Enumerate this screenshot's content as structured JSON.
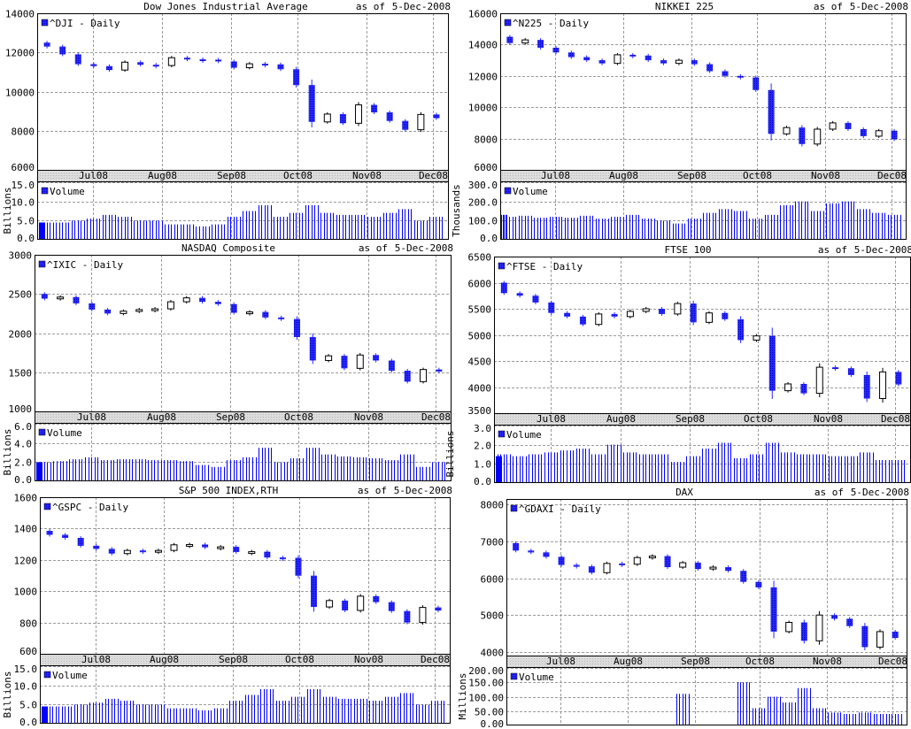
{
  "colors": {
    "down": "#2a2aff",
    "up": "#ffffff",
    "outline": "#000000",
    "volume": "#0000ff",
    "grid": "#9a9a9a",
    "date_band": "#d9d9d9"
  },
  "as_of_label": "as of",
  "as_of_date": "5-Dec-2008",
  "x_ticks": [
    "Jul08",
    "Aug08",
    "Sep08",
    "Oct08",
    "Nov08",
    "Dec08"
  ],
  "volume_legend": "Volume",
  "chart_data": [
    {
      "type": "candlestick",
      "title": "Dow Jones Industrial Average",
      "legend": "^DJI - Daily",
      "ylim": [
        6000,
        14000
      ],
      "yticks": [
        "6000",
        "8000",
        "10000",
        "12000",
        "14000"
      ],
      "volume_label": "Billions",
      "volume_ylim": [
        0,
        15
      ],
      "volume_ticks": [
        "0.0",
        "5.0",
        "10.0",
        "15.0"
      ],
      "x": [
        "2008-06-09",
        "2008-06-13",
        "2008-06-20",
        "2008-06-27",
        "2008-07-04",
        "2008-07-11",
        "2008-07-18",
        "2008-07-25",
        "2008-08-01",
        "2008-08-08",
        "2008-08-15",
        "2008-08-22",
        "2008-08-29",
        "2008-09-05",
        "2008-09-12",
        "2008-09-19",
        "2008-09-26",
        "2008-10-03",
        "2008-10-10",
        "2008-10-17",
        "2008-10-24",
        "2008-10-31",
        "2008-11-07",
        "2008-11-14",
        "2008-11-21",
        "2008-11-28",
        "2008-12-05"
      ],
      "close": [
        12500,
        12300,
        11900,
        11400,
        11300,
        11100,
        11500,
        11370,
        11330,
        11730,
        11650,
        11630,
        11540,
        11220,
        11420,
        11390,
        11140,
        10330,
        8450,
        8850,
        8380,
        9320,
        8940,
        8500,
        8050,
        8830,
        8640
      ],
      "volume": [
        4.5,
        4.5,
        4.5,
        5,
        5.5,
        6.5,
        6,
        5,
        5,
        4,
        4,
        3.5,
        4,
        6,
        7.5,
        9,
        6,
        7,
        9,
        7,
        6.5,
        6.5,
        6,
        7,
        8,
        5,
        6
      ]
    },
    {
      "type": "candlestick",
      "title": "NIKKEI 225",
      "legend": "^N225 - Daily",
      "ylim": [
        6000,
        16000
      ],
      "yticks": [
        "6000",
        "8000",
        "10000",
        "12000",
        "14000",
        "16000"
      ],
      "volume_label": "Thousands",
      "volume_ylim": [
        0,
        300
      ],
      "volume_ticks": [
        "0.0",
        "100.0",
        "200.0",
        "300.0"
      ],
      "x": [
        "2008-06-09",
        "2008-06-13",
        "2008-06-20",
        "2008-06-27",
        "2008-07-04",
        "2008-07-11",
        "2008-07-18",
        "2008-07-25",
        "2008-08-01",
        "2008-08-08",
        "2008-08-15",
        "2008-08-22",
        "2008-08-29",
        "2008-09-05",
        "2008-09-12",
        "2008-09-19",
        "2008-09-26",
        "2008-10-03",
        "2008-10-10",
        "2008-10-17",
        "2008-10-24",
        "2008-10-31",
        "2008-11-07",
        "2008-11-14",
        "2008-11-21",
        "2008-11-28",
        "2008-12-05"
      ],
      "close": [
        14500,
        14100,
        14300,
        13800,
        13500,
        13200,
        13000,
        12800,
        13350,
        13300,
        13000,
        12800,
        13000,
        12750,
        12300,
        12000,
        11900,
        11100,
        8300,
        8700,
        7650,
        8600,
        9000,
        8600,
        8150,
        8500,
        7950
      ],
      "volume": [
        130,
        120,
        125,
        115,
        120,
        115,
        125,
        110,
        120,
        130,
        110,
        100,
        85,
        110,
        140,
        160,
        150,
        110,
        130,
        180,
        200,
        150,
        190,
        200,
        160,
        140,
        130
      ]
    },
    {
      "type": "candlestick",
      "title": "NASDAQ Composite",
      "legend": "^IXIC - Daily",
      "ylim": [
        1000,
        3000
      ],
      "yticks": [
        "1000",
        "1500",
        "2000",
        "2500",
        "3000"
      ],
      "volume_label": "Billions",
      "volume_ylim": [
        0,
        6
      ],
      "volume_ticks": [
        "0.0",
        "2.0",
        "4.0",
        "6.0"
      ],
      "x": [
        "2008-06-09",
        "2008-06-13",
        "2008-06-20",
        "2008-06-27",
        "2008-07-04",
        "2008-07-11",
        "2008-07-18",
        "2008-07-25",
        "2008-08-01",
        "2008-08-08",
        "2008-08-15",
        "2008-08-22",
        "2008-08-29",
        "2008-09-05",
        "2008-09-12",
        "2008-09-19",
        "2008-09-26",
        "2008-10-03",
        "2008-10-10",
        "2008-10-17",
        "2008-10-24",
        "2008-10-31",
        "2008-11-07",
        "2008-11-14",
        "2008-11-21",
        "2008-11-28",
        "2008-12-05"
      ],
      "close": [
        2500,
        2440,
        2460,
        2380,
        2300,
        2250,
        2280,
        2300,
        2310,
        2400,
        2450,
        2400,
        2370,
        2260,
        2270,
        2200,
        2180,
        1950,
        1650,
        1710,
        1550,
        1720,
        1650,
        1520,
        1380,
        1535,
        1509
      ],
      "volume": [
        2,
        2,
        2.1,
        2.3,
        2.5,
        2.2,
        2.3,
        2.3,
        2.2,
        2.2,
        2.1,
        1.7,
        1.5,
        2.2,
        2.5,
        3.5,
        2,
        2.4,
        3.5,
        2.8,
        2.6,
        2.5,
        2.4,
        2.2,
        2.8,
        1.5,
        2
      ]
    },
    {
      "type": "candlestick",
      "title": "FTSE 100",
      "legend": "^FTSE - Daily",
      "ylim": [
        3500,
        6500
      ],
      "yticks": [
        "3500",
        "4000",
        "4500",
        "5000",
        "5500",
        "6000",
        "6500"
      ],
      "volume_label": "Billions",
      "volume_ylim": [
        0,
        3
      ],
      "volume_ticks": [
        "0.0",
        "1.0",
        "2.0",
        "3.0"
      ],
      "x": [
        "2008-06-09",
        "2008-06-13",
        "2008-06-20",
        "2008-06-27",
        "2008-07-04",
        "2008-07-11",
        "2008-07-18",
        "2008-07-25",
        "2008-08-01",
        "2008-08-08",
        "2008-08-15",
        "2008-08-22",
        "2008-08-29",
        "2008-09-05",
        "2008-09-12",
        "2008-09-19",
        "2008-09-26",
        "2008-10-03",
        "2008-10-10",
        "2008-10-17",
        "2008-10-24",
        "2008-10-31",
        "2008-11-07",
        "2008-11-14",
        "2008-11-21",
        "2008-11-28",
        "2008-12-05"
      ],
      "close": [
        6000,
        5800,
        5750,
        5620,
        5420,
        5350,
        5200,
        5400,
        5350,
        5450,
        5500,
        5400,
        5600,
        5240,
        5420,
        5300,
        4900,
        4980,
        3930,
        4060,
        3880,
        4380,
        4360,
        4230,
        3780,
        4290,
        4050
      ],
      "volume": [
        1.4,
        1.5,
        1.4,
        1.5,
        1.6,
        1.7,
        1.8,
        1.5,
        2,
        1.6,
        1.5,
        1.5,
        1.1,
        1.4,
        1.8,
        2.1,
        1.3,
        1.5,
        2.1,
        1.6,
        1.5,
        1.5,
        1.4,
        1.4,
        1.6,
        1.2,
        1.2
      ]
    },
    {
      "type": "candlestick",
      "title": "S&P 500 INDEX,RTH",
      "legend": "^GSPC - Daily",
      "ylim": [
        600,
        1600
      ],
      "yticks": [
        "600",
        "800",
        "1000",
        "1200",
        "1400",
        "1600"
      ],
      "volume_label": "Billions",
      "volume_ylim": [
        0,
        15
      ],
      "volume_ticks": [
        "0.0",
        "5.0",
        "10.0",
        "15.0"
      ],
      "x": [
        "2008-06-09",
        "2008-06-13",
        "2008-06-20",
        "2008-06-27",
        "2008-07-04",
        "2008-07-11",
        "2008-07-18",
        "2008-07-25",
        "2008-08-01",
        "2008-08-08",
        "2008-08-15",
        "2008-08-22",
        "2008-08-29",
        "2008-09-05",
        "2008-09-12",
        "2008-09-19",
        "2008-09-26",
        "2008-10-03",
        "2008-10-10",
        "2008-10-17",
        "2008-10-24",
        "2008-10-31",
        "2008-11-07",
        "2008-11-14",
        "2008-11-21",
        "2008-11-28",
        "2008-12-05"
      ],
      "close": [
        1385,
        1360,
        1340,
        1290,
        1270,
        1240,
        1260,
        1257,
        1260,
        1296,
        1298,
        1280,
        1283,
        1250,
        1252,
        1215,
        1213,
        1099,
        899,
        940,
        877,
        968,
        930,
        873,
        800,
        896,
        876
      ],
      "volume": [
        4.5,
        4.5,
        4.5,
        5,
        5.5,
        6.5,
        6,
        5,
        5,
        4,
        4,
        3.5,
        4,
        6,
        7.5,
        9,
        6,
        7,
        9,
        7,
        6.5,
        6.5,
        6,
        7,
        8,
        5,
        6
      ]
    },
    {
      "type": "candlestick",
      "title": "DAX",
      "legend": "^GDAXI - Daily",
      "ylim": [
        3900,
        8150
      ],
      "yticks": [
        "4000",
        "5000",
        "6000",
        "7000",
        "8000"
      ],
      "volume_label": "Millions",
      "volume_ylim": [
        0,
        200
      ],
      "volume_ticks": [
        "0.00",
        "50.00",
        "100.00",
        "150.00",
        "200.00"
      ],
      "x": [
        "2008-06-09",
        "2008-06-13",
        "2008-06-20",
        "2008-06-27",
        "2008-07-04",
        "2008-07-11",
        "2008-07-18",
        "2008-07-25",
        "2008-08-01",
        "2008-08-08",
        "2008-08-15",
        "2008-08-22",
        "2008-08-29",
        "2008-09-05",
        "2008-09-12",
        "2008-09-19",
        "2008-09-26",
        "2008-10-03",
        "2008-10-10",
        "2008-10-17",
        "2008-10-24",
        "2008-10-31",
        "2008-11-07",
        "2008-11-14",
        "2008-11-21",
        "2008-11-28",
        "2008-12-05"
      ],
      "close": [
        6950,
        6750,
        6700,
        6580,
        6360,
        6320,
        6150,
        6400,
        6380,
        6560,
        6600,
        6300,
        6420,
        6250,
        6300,
        6200,
        5900,
        5750,
        4550,
        4800,
        4300,
        5000,
        4900,
        4700,
        4130,
        4550,
        4380
      ],
      "volume": [
        0,
        0,
        0,
        0,
        0,
        0,
        0,
        0,
        0,
        0,
        0,
        0,
        110,
        0,
        0,
        0,
        150,
        60,
        100,
        80,
        130,
        60,
        45,
        40,
        45,
        40,
        40
      ]
    }
  ]
}
